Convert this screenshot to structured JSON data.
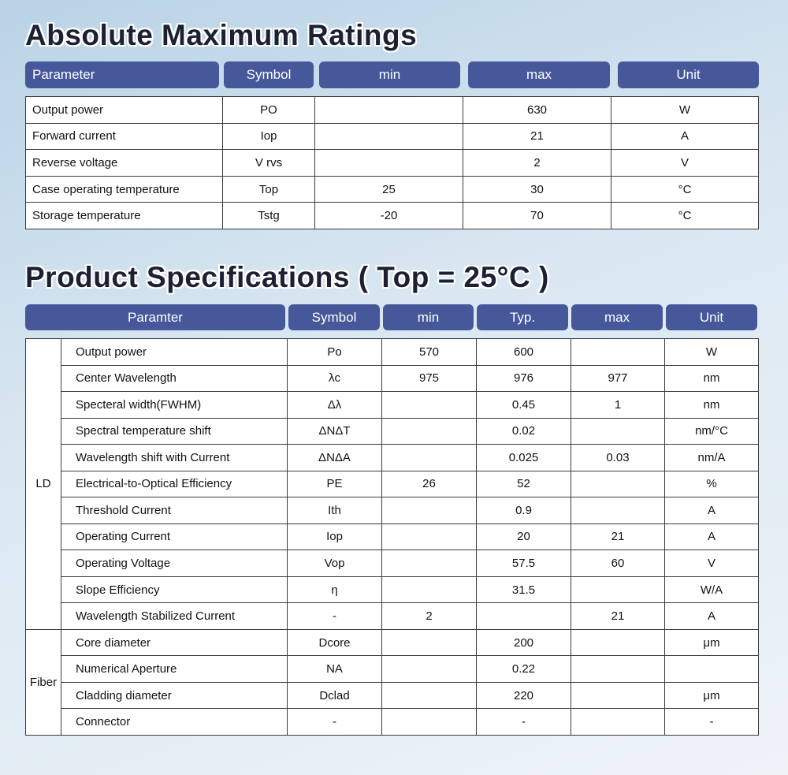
{
  "section1": {
    "title": "Absolute Maximum Ratings",
    "header": [
      "Parameter",
      "Symbol",
      "min",
      "max",
      "Unit"
    ],
    "rows": [
      [
        "Output power",
        "PO",
        null,
        "630",
        "W"
      ],
      [
        "Forward current",
        "Iop",
        null,
        "21",
        "A"
      ],
      [
        "Reverse voltage",
        "V rvs",
        null,
        "2",
        "V"
      ],
      [
        "Case operating temperature",
        "Top",
        "25",
        "30",
        "°C"
      ],
      [
        "Storage temperature",
        "Tstg",
        "-20",
        "70",
        "°C"
      ]
    ]
  },
  "section2": {
    "title": "Product Specifications ( Top = 25°C )",
    "header": [
      "Paramter",
      "Symbol",
      "min",
      "Typ.",
      "max",
      "Unit"
    ],
    "groups": [
      {
        "label": "LD",
        "rows": [
          [
            "Output power",
            "Po",
            "570",
            "600",
            null,
            "W"
          ],
          [
            "Center Wavelength",
            "λc",
            "975",
            "976",
            "977",
            "nm"
          ],
          [
            "Specteral width(FWHM)",
            "Δλ",
            null,
            "0.45",
            "1",
            "nm"
          ],
          [
            "Spectral temperature shift",
            "ΔNΔT",
            null,
            "0.02",
            null,
            "nm/°C"
          ],
          [
            "Wavelength shift with Current",
            "ΔNΔA",
            null,
            "0.025",
            "0.03",
            "nm/A"
          ],
          [
            "Electrical-to-Optical Efficiency",
            "PE",
            "26",
            "52",
            null,
            "%"
          ],
          [
            "Threshold Current",
            "Ith",
            null,
            "0.9",
            null,
            "A"
          ],
          [
            "Operating Current",
            "Iop",
            null,
            "20",
            "21",
            "A"
          ],
          [
            "Operating Voltage",
            "Vop",
            null,
            "57.5",
            "60",
            "V"
          ],
          [
            "Slope Efficiency",
            "η",
            null,
            "31.5",
            null,
            "W/A"
          ],
          [
            "Wavelength Stabilized Current",
            "-",
            "2",
            null,
            "21",
            "A"
          ]
        ]
      },
      {
        "label": "Fiber",
        "rows": [
          [
            "Core diameter",
            "Dcore",
            null,
            "200",
            null,
            "μm"
          ],
          [
            "Numerical Aperture",
            "NA",
            null,
            "0.22",
            null,
            null
          ],
          [
            "Cladding diameter",
            "Dclad",
            null,
            "220",
            null,
            "μm"
          ],
          [
            "Connector",
            "-",
            null,
            "-",
            null,
            "-"
          ]
        ]
      }
    ]
  }
}
